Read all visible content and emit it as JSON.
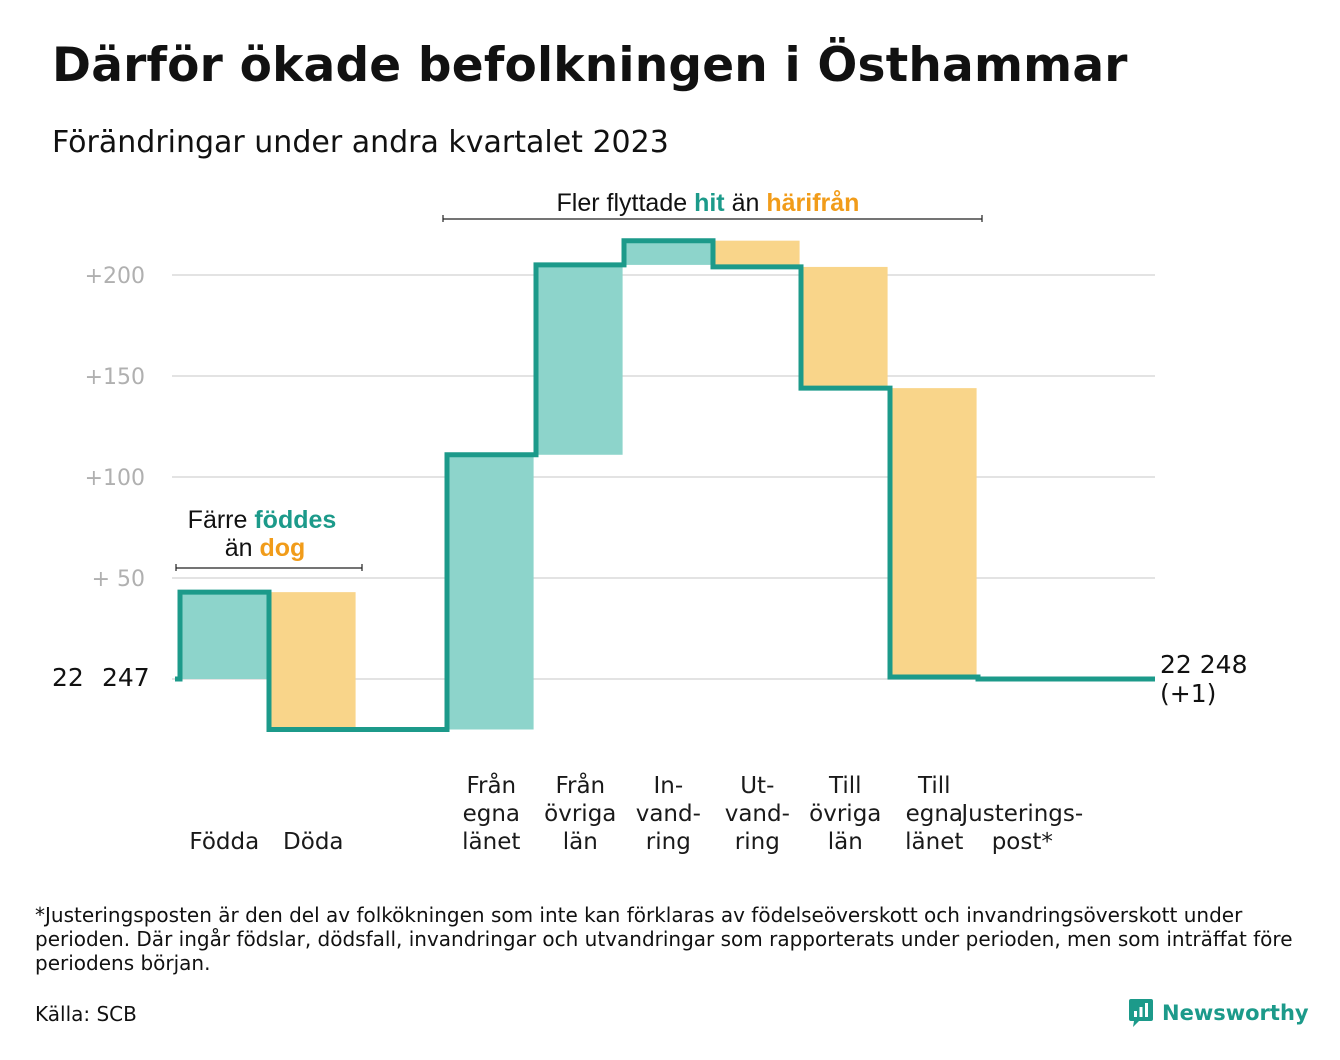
{
  "title": "Därför ökade befolkningen i Östhammar",
  "subtitle": "Förändringar under andra kvartalet 2023",
  "chart_data": {
    "type": "waterfall",
    "start_label_parts": [
      "22",
      "247"
    ],
    "start_value": 22247,
    "steps": [
      {
        "label": [
          "Födda"
        ],
        "delta": 43,
        "kind": "increase"
      },
      {
        "label": [
          "Döda"
        ],
        "delta": -68,
        "kind": "decrease"
      },
      {
        "label": [
          "Från",
          "egna",
          "länet"
        ],
        "delta": 136,
        "kind": "increase"
      },
      {
        "label": [
          "Från",
          "övriga",
          "län"
        ],
        "delta": 94,
        "kind": "increase"
      },
      {
        "label": [
          "In-",
          "vand-",
          "ring"
        ],
        "delta": 12,
        "kind": "increase"
      },
      {
        "label": [
          "Ut-",
          "vand-",
          "ring"
        ],
        "delta": -13,
        "kind": "decrease"
      },
      {
        "label": [
          "Till",
          "övriga",
          "län"
        ],
        "delta": -60,
        "kind": "decrease"
      },
      {
        "label": [
          "Till",
          "egna",
          "länet"
        ],
        "delta": -143,
        "kind": "decrease"
      },
      {
        "label": [
          "Justerings-",
          "post*"
        ],
        "delta": -1,
        "kind": "adjustment"
      }
    ],
    "end_label": "22 248",
    "end_change": "(+1)",
    "yticks": [
      {
        "value": 50,
        "label": "+  50"
      },
      {
        "value": 100,
        "label": "+100"
      },
      {
        "value": 150,
        "label": "+150"
      },
      {
        "value": 200,
        "label": "+200"
      }
    ],
    "ylim": [
      -26,
      218
    ],
    "grid": true,
    "annotations": {
      "births": {
        "line1_prefix": "Färre",
        "line1_highlight": "föddes",
        "line2_prefix": "än",
        "line2_highlight": "dog"
      },
      "migration": {
        "prefix": "Fler flyttade",
        "highlight1": "hit",
        "middle": "än",
        "highlight2": "härifrån"
      }
    },
    "colors": {
      "increase": "#8dd4cb",
      "decrease": "#f9d58a",
      "line": "#1c9a8a",
      "grid": "#e3e3e3",
      "tick": "#b0b0b0",
      "highlight_green": "#1c9a8a",
      "highlight_orange": "#f19c1a"
    }
  },
  "footnote": "*Justeringsposten är den del av folkökningen som inte kan förklaras av födelseöverskott och invandringsöverskott under perioden. Där ingår födslar, dödsfall, invandringar och utvandringar som rapporterats under perioden, men som inträffat före periodens början.",
  "source": "Källa: SCB",
  "brand": {
    "name": "Newsworthy",
    "icon": "bar-chart-speech-bubble-icon"
  }
}
